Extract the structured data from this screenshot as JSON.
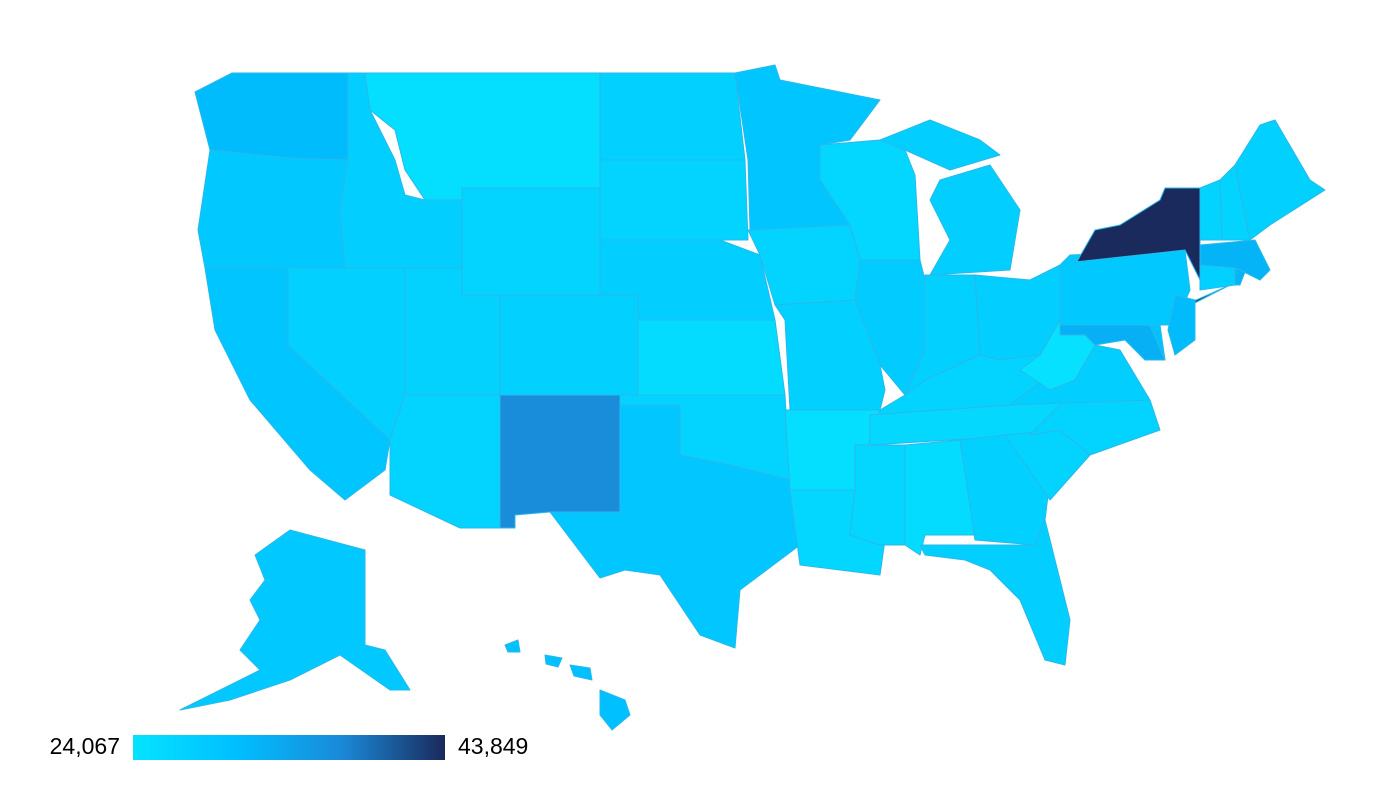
{
  "chart_data": {
    "type": "choropleth",
    "values": [
      31000,
      29000,
      29500,
      27500,
      28000,
      25000,
      27000,
      27200,
      27000,
      27500,
      37000,
      27500,
      27000,
      28000,
      25300,
      27000,
      29300,
      29500,
      26800,
      27500,
      25000,
      26300,
      26500,
      28300,
      27800,
      27500,
      28000,
      27000,
      26000,
      26500,
      25300,
      27500,
      27700,
      27000,
      27000,
      27700,
      24500,
      29000,
      43849,
      31000,
      32500,
      30000,
      27000,
      27000,
      27500,
      32000,
      27500,
      32000,
      28800,
      30500
    ],
    "colorscale": [
      "#05e3ff",
      "#00bfff",
      "#1a8ad8",
      "#1b2a5c"
    ],
    "colorbar": {
      "min": {
        "value": 24067,
        "label": "24,067"
      },
      "max": {
        "value": 43849,
        "label": "43,849"
      }
    }
  }
}
